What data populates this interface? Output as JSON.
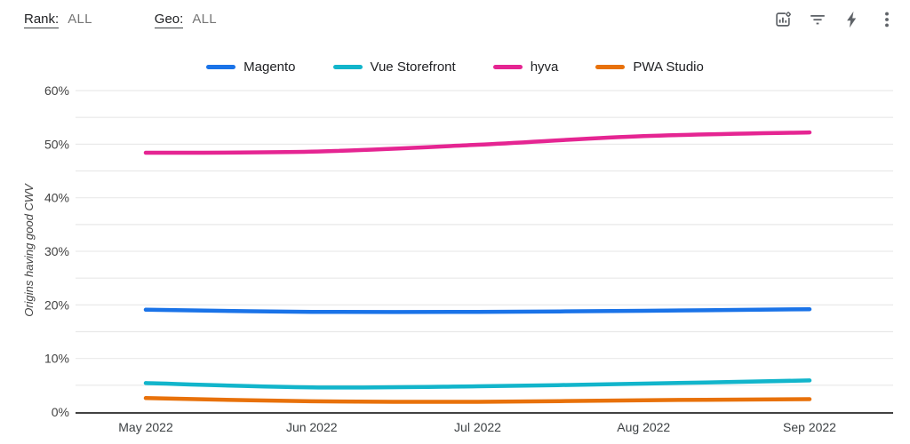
{
  "header": {
    "filters": [
      {
        "label": "Rank:",
        "value": "ALL"
      },
      {
        "label": "Geo:",
        "value": "ALL"
      }
    ],
    "toolbar": {
      "icons": [
        {
          "name": "chart-options-icon"
        },
        {
          "name": "filter-icon"
        },
        {
          "name": "lightning-icon"
        },
        {
          "name": "more-options-icon"
        }
      ]
    }
  },
  "chart_data": {
    "type": "line",
    "title": "",
    "xlabel": "",
    "ylabel": "Origins having good CWV",
    "categories": [
      "May 2022",
      "Jun 2022",
      "Jul 2022",
      "Aug 2022",
      "Sep 2022"
    ],
    "series": [
      {
        "name": "Magento",
        "color": "#1a73e8",
        "values": [
          19.1,
          18.7,
          18.7,
          18.9,
          19.2
        ]
      },
      {
        "name": "Vue Storefront",
        "color": "#12b5cb",
        "values": [
          5.4,
          4.6,
          4.8,
          5.3,
          5.9
        ]
      },
      {
        "name": "hyva",
        "color": "#e52592",
        "values": [
          48.4,
          48.6,
          49.9,
          51.5,
          52.2
        ]
      },
      {
        "name": "PWA Studio",
        "color": "#e8710a",
        "values": [
          2.6,
          2.0,
          1.9,
          2.2,
          2.4
        ]
      }
    ],
    "ylim": [
      0,
      62
    ],
    "ytick_labels": [
      "0%",
      "10%",
      "20%",
      "30%",
      "40%",
      "50%",
      "60%"
    ],
    "ytick_label_step": 10,
    "gridline_step": 5,
    "grid": true,
    "legend_position": "top",
    "axis_color": "#424242",
    "gridline_color": "#e9e9e9"
  }
}
